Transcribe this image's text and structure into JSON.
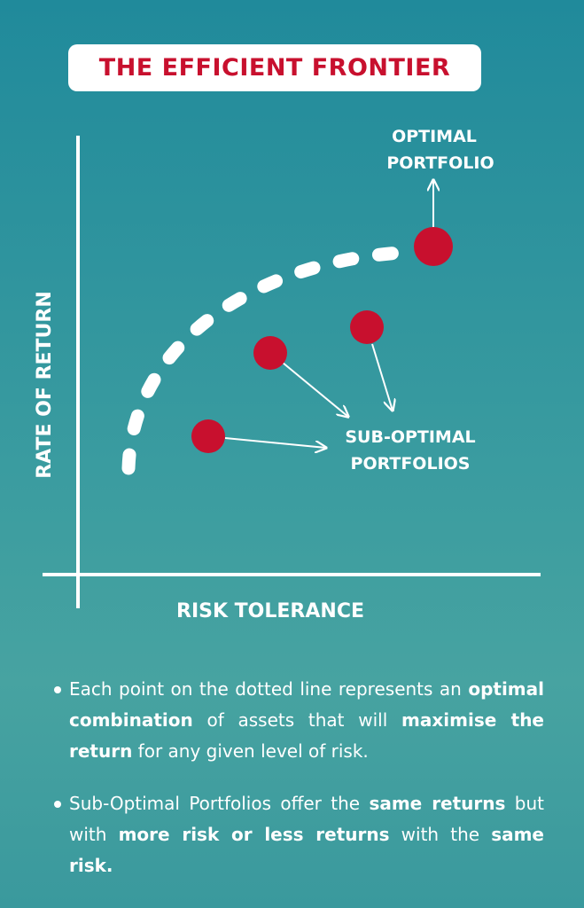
{
  "title": "THE EFFICIENT FRONTIER",
  "axes": {
    "y_label": "RATE OF RETURN",
    "x_label": "RISK TOLERANCE"
  },
  "annotations": {
    "optimal_line1": "OPTIMAL",
    "optimal_line2": "PORTFOLIO",
    "suboptimal_line1": "SUB-OPTIMAL",
    "suboptimal_line2": "PORTFOLIOS"
  },
  "colors": {
    "accent": "#c8102e",
    "foreground": "#ffffff",
    "background_top": "#208a9b",
    "background_bottom": "#47a3a1"
  },
  "bullets": [
    {
      "parts": [
        {
          "text": "Each point on the dotted line represents an ",
          "bold": false
        },
        {
          "text": "optimal combination",
          "bold": true
        },
        {
          "text": " of assets that will ",
          "bold": false
        },
        {
          "text": "maximise the return",
          "bold": true
        },
        {
          "text": " for any given level of risk.",
          "bold": false
        }
      ]
    },
    {
      "parts": [
        {
          "text": "Sub-Optimal Portfolios offer the ",
          "bold": false
        },
        {
          "text": "same returns",
          "bold": true
        },
        {
          "text": " but with ",
          "bold": false
        },
        {
          "text": "more risk or less returns",
          "bold": true
        },
        {
          "text": " with the ",
          "bold": false
        },
        {
          "text": "same risk.",
          "bold": true
        }
      ]
    }
  ]
}
